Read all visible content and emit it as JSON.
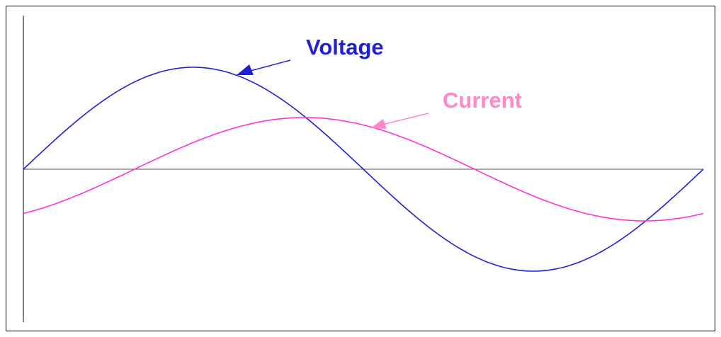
{
  "curves": [
    {
      "label": "Voltage",
      "color": "#1f1fd6"
    },
    {
      "label": "Current",
      "color": "#ff33dd",
      "label_color": "#ff88cc"
    }
  ]
}
